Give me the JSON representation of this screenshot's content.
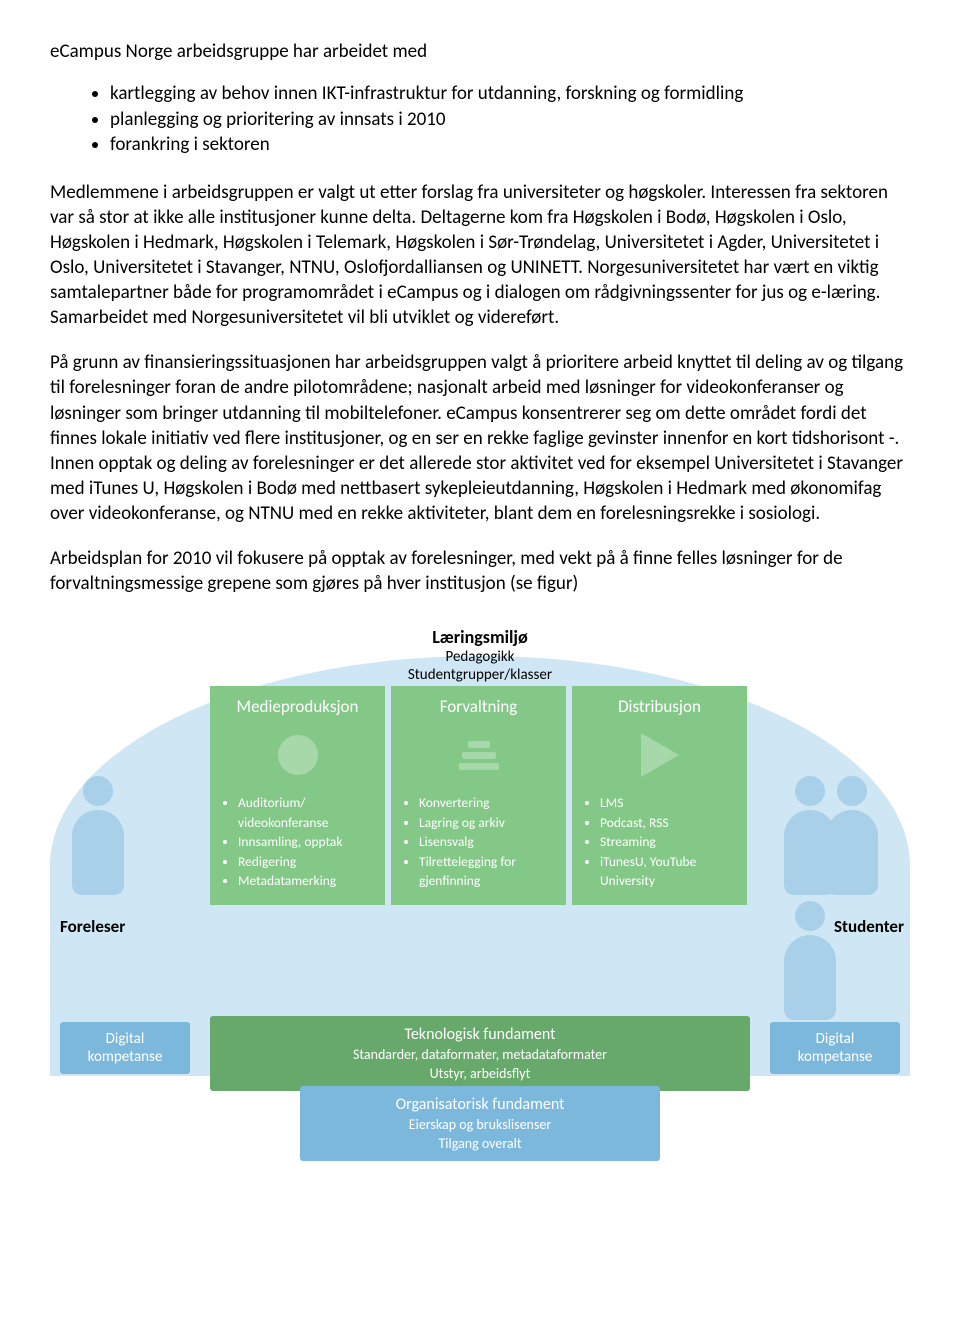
{
  "heading": "eCampus Norge arbeidsgruppe har arbeidet med",
  "bullets": [
    "kartlegging av behov innen IKT-infrastruktur for utdanning, forskning og formidling",
    "planlegging og prioritering av innsats i 2010",
    "forankring i sektoren"
  ],
  "para1": "Medlemmene i arbeidsgruppen er valgt ut etter forslag fra universiteter og høgskoler. Interessen fra sektoren var så stor at ikke alle institusjoner kunne delta. Deltagerne kom fra Høgskolen i Bodø, Høgskolen i Oslo, Høgskolen i Hedmark, Høgskolen i Telemark, Høgskolen i Sør-Trøndelag, Universitetet i Agder, Universitetet i Oslo, Universitetet i Stavanger, NTNU, Oslofjordalliansen og UNINETT. Norgesuniversitetet har vært en viktig samtalepartner både for programområdet i eCampus og i dialogen om rådgivningssenter for jus og e-læring. Samarbeidet med Norgesuniversitetet vil bli utviklet og videreført.",
  "para2": "På grunn av finansieringssituasjonen har arbeidsgruppen valgt å prioritere arbeid knyttet til deling av og tilgang til forelesninger foran de andre pilotområdene; nasjonalt arbeid med løsninger for videokonferanser og løsninger som bringer utdanning til mobiltelefoner. eCampus konsentrerer seg om dette området fordi det finnes lokale initiativ ved flere institusjoner, og en ser en rekke faglige gevinster innenfor en kort tidshorisont -. Innen opptak og deling av forelesninger er det allerede stor aktivitet ved for eksempel Universitetet i Stavanger med iTunes U, Høgskolen i Bodø med nettbasert sykepleieutdanning, Høgskolen i Hedmark med økonomifag over videokonferanse, og NTNU med en rekke aktiviteter, blant dem en forelesningsrekke i sosiologi.",
  "para3": "Arbeidsplan for 2010 vil fokusere på opptak av forelesninger, med vekt på å finne felles løsninger for de forvaltningsmessige grepene som gjøres på hver institusjon (se figur)",
  "diagram": {
    "top": {
      "t1": "Læringsmiljø",
      "t2": "Pedagogikk",
      "t3": "Studentgrupper/klasser"
    },
    "foreleser": "Foreleser",
    "studenter": "Studenter",
    "panels": [
      {
        "title": "Medieproduksjon",
        "icon": "circle",
        "items": [
          "Auditorium/ videokonferanse",
          "Innsamling, opptak",
          "Redigering",
          "Metadatamerking"
        ]
      },
      {
        "title": "Forvaltning",
        "icon": "bars",
        "items": [
          "Konvertering",
          "Lagring og arkiv",
          "Lisensvalg",
          "Tilrettelegging for gjenfinning"
        ]
      },
      {
        "title": "Distribusjon",
        "icon": "play",
        "items": [
          "LMS",
          "Podcast, RSS",
          "Streaming",
          "iTunesU, YouTube University"
        ]
      }
    ],
    "digital": {
      "l1": "Digital",
      "l2": "kompetanse"
    },
    "tech": {
      "t1": "Teknologisk fundament",
      "t2": "Standarder, dataformater, metadataformater",
      "t3": "Utstyr, arbeidsflyt"
    },
    "org": {
      "o1": "Organisatorisk fundament",
      "o2": "Eierskap og brukslisenser",
      "o3": "Tilgang overalt"
    },
    "colors": {
      "arc_bg": "#cfe7f4",
      "panel_bg": "#84c888",
      "panel_icon": "#a7d8aa",
      "person": "#a8d0e8",
      "band_blue": "#7cb8dc",
      "band_green": "#66a96a"
    }
  }
}
